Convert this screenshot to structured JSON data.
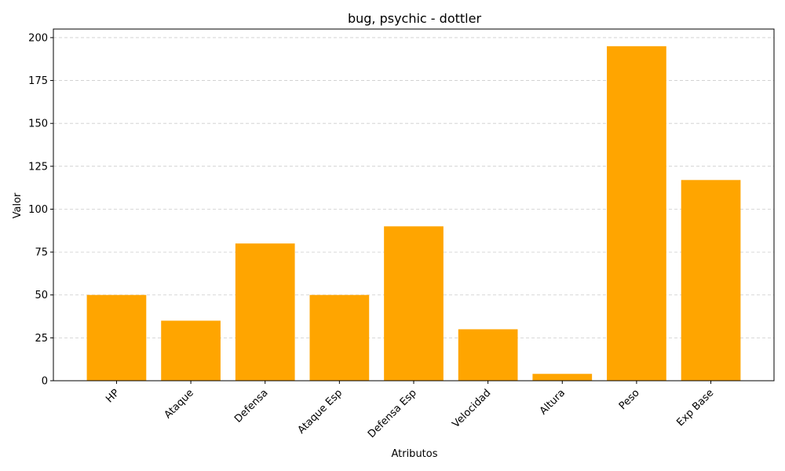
{
  "chart_data": {
    "type": "bar",
    "title": "bug, psychic - dottler",
    "xlabel": "Atributos",
    "ylabel": "Valor",
    "categories": [
      "HP",
      "Ataque",
      "Defensa",
      "Ataque Esp",
      "Defensa Esp",
      "Velocidad",
      "Altura",
      "Peso",
      "Exp Base"
    ],
    "values": [
      50,
      35,
      80,
      50,
      90,
      30,
      4,
      195,
      117
    ],
    "ylim": [
      0,
      205
    ],
    "yticks": [
      0,
      25,
      50,
      75,
      100,
      125,
      150,
      175,
      200
    ],
    "ytick_labels": [
      "0",
      "25",
      "50",
      "75",
      "100",
      "125",
      "150",
      "175",
      "200"
    ],
    "grid": "y-dashed",
    "bar_color": "#ffa500",
    "grid_color": "#cccccc",
    "xtick_rotation_deg": 45
  }
}
